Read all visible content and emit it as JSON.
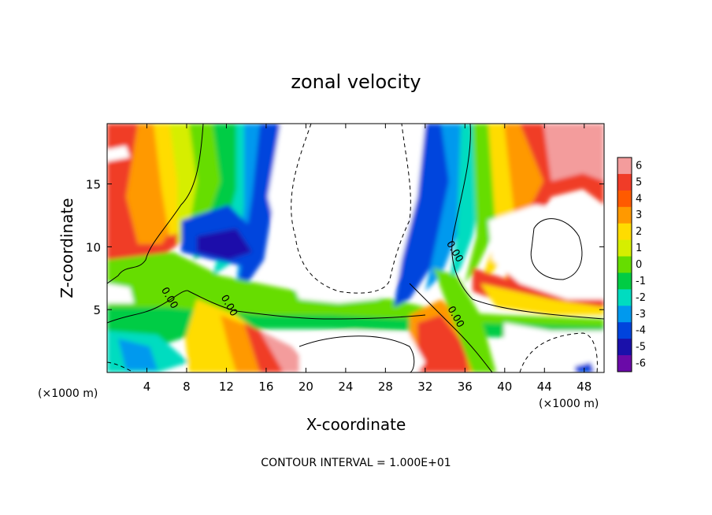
{
  "chart_data": {
    "type": "heatmap",
    "title": "zonal velocity",
    "xlabel": "X-coordinate",
    "ylabel": "Z-coordinate",
    "x_unit_label": "(×1000 m)",
    "y_unit_label": "(×1000 m)",
    "xlim": [
      0,
      50
    ],
    "ylim": [
      0,
      19.8
    ],
    "x_ticks": [
      4,
      8,
      12,
      16,
      20,
      24,
      28,
      32,
      36,
      40,
      44,
      48
    ],
    "y_ticks": [
      5,
      10,
      15
    ],
    "footer": "CONTOUR INTERVAL = 1.000E+01",
    "contour_labels": [
      {
        "text": "0.00",
        "x": 6,
        "y": 5.8
      },
      {
        "text": "0.00",
        "x": 12,
        "y": 5.2
      },
      {
        "text": "0.00",
        "x": 34.7,
        "y": 9.5
      },
      {
        "text": "0.00",
        "x": 34.8,
        "y": 4.3
      }
    ],
    "colorbar": {
      "levels": [
        "6",
        "5",
        "4",
        "3",
        "2",
        "1",
        "0",
        "-1",
        "-2",
        "-3",
        "-4",
        "-5",
        "-6"
      ],
      "colors": [
        "#f39c9c",
        "#f03c28",
        "#ff5a00",
        "#ff9900",
        "#ffdc00",
        "#d6ee00",
        "#66dd00",
        "#00cc44",
        "#00dcc0",
        "#0099ee",
        "#0044dd",
        "#1a10aa",
        "#6a0aa8"
      ]
    },
    "grid": false
  }
}
